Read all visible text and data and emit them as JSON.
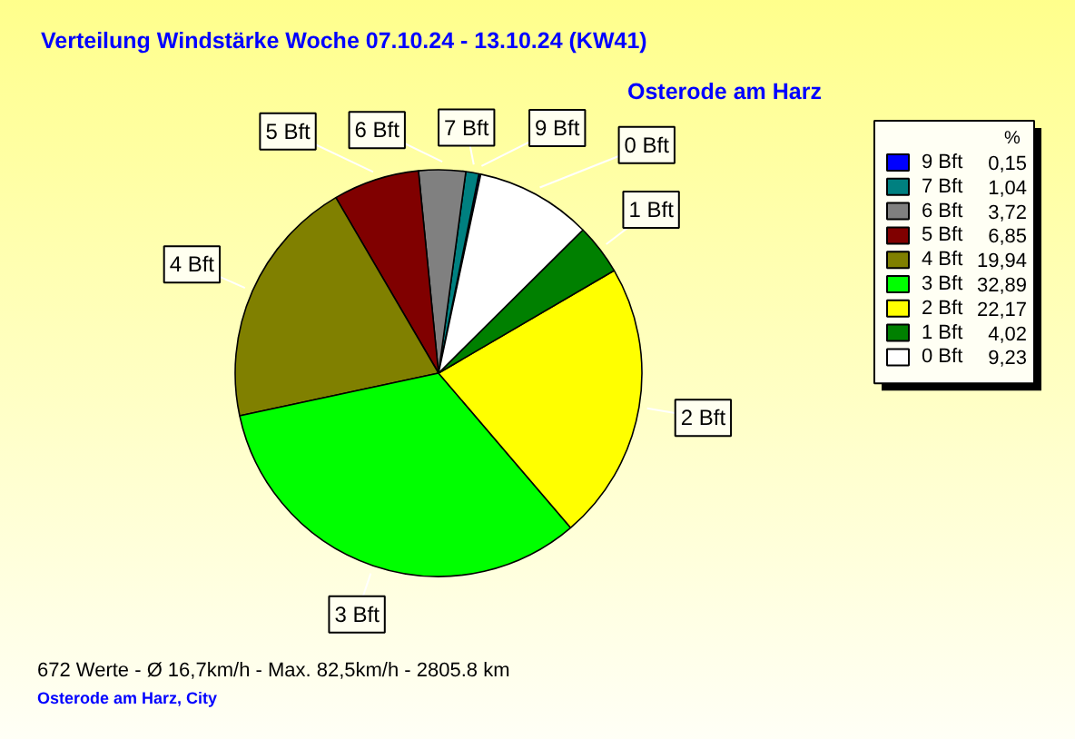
{
  "chart_data": {
    "type": "pie",
    "title": "Verteilung Windstärke  Woche 07.10.24 - 13.10.24 (KW41)",
    "subtitle": "Osterode am Harz",
    "categories": [
      "9 Bft",
      "7 Bft",
      "6 Bft",
      "5 Bft",
      "4 Bft",
      "3 Bft",
      "2 Bft",
      "1 Bft",
      "0 Bft"
    ],
    "values": [
      0.15,
      1.04,
      3.72,
      6.85,
      19.94,
      32.89,
      22.17,
      4.02,
      9.23
    ],
    "value_labels": [
      "0,15",
      "1,04",
      "3,72",
      "6,85",
      "19,94",
      "32,89",
      "22,17",
      "4,02",
      "9,23"
    ],
    "colors": [
      "#0000ff",
      "#008080",
      "#808080",
      "#800000",
      "#808000",
      "#00ff00",
      "#ffff00",
      "#008000",
      "#ffffff"
    ],
    "legend": "top right",
    "legend_title": "%",
    "annotations": [
      "672 Werte   -   Ø 16,7km/h  -  Max. 82,5km/h   -   2805.8 km",
      "Osterode am Harz, City"
    ]
  }
}
